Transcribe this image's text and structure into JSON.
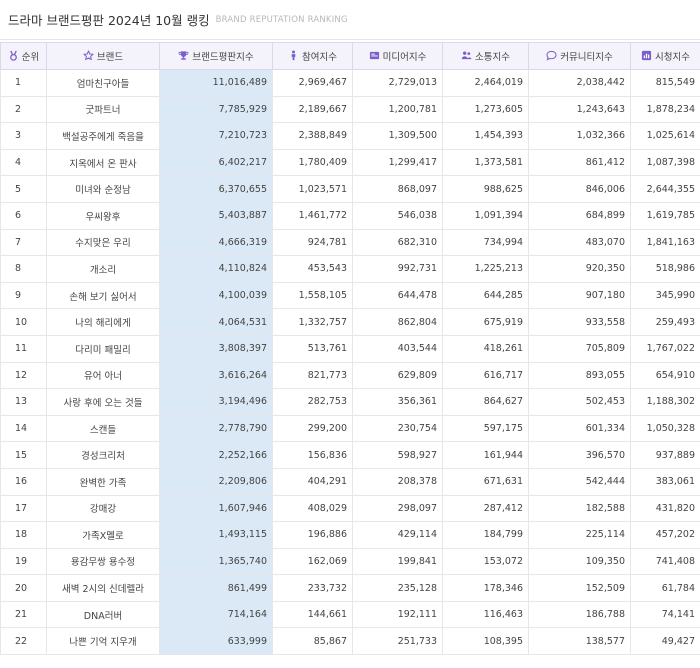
{
  "header": {
    "title": "드라마 브랜드평판 2024년 10월 랭킹",
    "subtitle": "BRAND REPUTATION RANKING"
  },
  "colors": {
    "accent": "#7a5fc9",
    "total_col_bg": "#dbe9f6",
    "header_bg": "#f4f2fa"
  },
  "columns": [
    {
      "label": "순위",
      "icon": "medal-icon"
    },
    {
      "label": "브랜드",
      "icon": "star-icon"
    },
    {
      "label": "브랜드평판지수",
      "icon": "trophy-icon"
    },
    {
      "label": "참여지수",
      "icon": "person-icon"
    },
    {
      "label": "미디어지수",
      "icon": "media-icon"
    },
    {
      "label": "소통지수",
      "icon": "users-icon"
    },
    {
      "label": "커뮤니티지수",
      "icon": "speech-bubble-icon"
    },
    {
      "label": "시청지수",
      "icon": "chart-icon"
    }
  ],
  "rows": [
    {
      "rank": "1",
      "brand": "엄마친구아들",
      "total": "11,016,489",
      "participation": "2,969,467",
      "media": "2,729,013",
      "communication": "2,464,019",
      "community": "2,038,442",
      "viewing": "815,549"
    },
    {
      "rank": "2",
      "brand": "굿파트너",
      "total": "7,785,929",
      "participation": "2,189,667",
      "media": "1,200,781",
      "communication": "1,273,605",
      "community": "1,243,643",
      "viewing": "1,878,234"
    },
    {
      "rank": "3",
      "brand": "백설공주에게 죽음을",
      "total": "7,210,723",
      "participation": "2,388,849",
      "media": "1,309,500",
      "communication": "1,454,393",
      "community": "1,032,366",
      "viewing": "1,025,614"
    },
    {
      "rank": "4",
      "brand": "지옥에서 온 판사",
      "total": "6,402,217",
      "participation": "1,780,409",
      "media": "1,299,417",
      "communication": "1,373,581",
      "community": "861,412",
      "viewing": "1,087,398"
    },
    {
      "rank": "5",
      "brand": "미녀와 순정남",
      "total": "6,370,655",
      "participation": "1,023,571",
      "media": "868,097",
      "communication": "988,625",
      "community": "846,006",
      "viewing": "2,644,355"
    },
    {
      "rank": "6",
      "brand": "우씨왕후",
      "total": "5,403,887",
      "participation": "1,461,772",
      "media": "546,038",
      "communication": "1,091,394",
      "community": "684,899",
      "viewing": "1,619,785"
    },
    {
      "rank": "7",
      "brand": "수지맞은 우리",
      "total": "4,666,319",
      "participation": "924,781",
      "media": "682,310",
      "communication": "734,994",
      "community": "483,070",
      "viewing": "1,841,163"
    },
    {
      "rank": "8",
      "brand": "개소리",
      "total": "4,110,824",
      "participation": "453,543",
      "media": "992,731",
      "communication": "1,225,213",
      "community": "920,350",
      "viewing": "518,986"
    },
    {
      "rank": "9",
      "brand": "손해 보기 싫어서",
      "total": "4,100,039",
      "participation": "1,558,105",
      "media": "644,478",
      "communication": "644,285",
      "community": "907,180",
      "viewing": "345,990"
    },
    {
      "rank": "10",
      "brand": "나의 해리에게",
      "total": "4,064,531",
      "participation": "1,332,757",
      "media": "862,804",
      "communication": "675,919",
      "community": "933,558",
      "viewing": "259,493"
    },
    {
      "rank": "11",
      "brand": "다리미 패밀리",
      "total": "3,808,397",
      "participation": "513,761",
      "media": "403,544",
      "communication": "418,261",
      "community": "705,809",
      "viewing": "1,767,022"
    },
    {
      "rank": "12",
      "brand": "유어 아너",
      "total": "3,616,264",
      "participation": "821,773",
      "media": "629,809",
      "communication": "616,717",
      "community": "893,055",
      "viewing": "654,910"
    },
    {
      "rank": "13",
      "brand": "사랑 후에 오는 것들",
      "total": "3,194,496",
      "participation": "282,753",
      "media": "356,361",
      "communication": "864,627",
      "community": "502,453",
      "viewing": "1,188,302"
    },
    {
      "rank": "14",
      "brand": "스캔들",
      "total": "2,778,790",
      "participation": "299,200",
      "media": "230,754",
      "communication": "597,175",
      "community": "601,334",
      "viewing": "1,050,328"
    },
    {
      "rank": "15",
      "brand": "경성크리처",
      "total": "2,252,166",
      "participation": "156,836",
      "media": "598,927",
      "communication": "161,944",
      "community": "396,570",
      "viewing": "937,889"
    },
    {
      "rank": "16",
      "brand": "완벽한 가족",
      "total": "2,209,806",
      "participation": "404,291",
      "media": "208,378",
      "communication": "671,631",
      "community": "542,444",
      "viewing": "383,061"
    },
    {
      "rank": "17",
      "brand": "강매강",
      "total": "1,607,946",
      "participation": "408,029",
      "media": "298,097",
      "communication": "287,412",
      "community": "182,588",
      "viewing": "431,820"
    },
    {
      "rank": "18",
      "brand": "가족X멜로",
      "total": "1,493,115",
      "participation": "196,886",
      "media": "429,114",
      "communication": "184,799",
      "community": "225,114",
      "viewing": "457,202"
    },
    {
      "rank": "19",
      "brand": "용감무쌍 용수정",
      "total": "1,365,740",
      "participation": "162,069",
      "media": "199,841",
      "communication": "153,072",
      "community": "109,350",
      "viewing": "741,408"
    },
    {
      "rank": "20",
      "brand": "새벽 2시의 신데렐라",
      "total": "861,499",
      "participation": "233,732",
      "media": "235,128",
      "communication": "178,346",
      "community": "152,509",
      "viewing": "61,784"
    },
    {
      "rank": "21",
      "brand": "DNA러버",
      "total": "714,164",
      "participation": "144,661",
      "media": "192,111",
      "communication": "116,463",
      "community": "186,788",
      "viewing": "74,141"
    },
    {
      "rank": "22",
      "brand": "나쁜 기억 지우개",
      "total": "633,999",
      "participation": "85,867",
      "media": "251,733",
      "communication": "108,395",
      "community": "138,577",
      "viewing": "49,427"
    }
  ]
}
